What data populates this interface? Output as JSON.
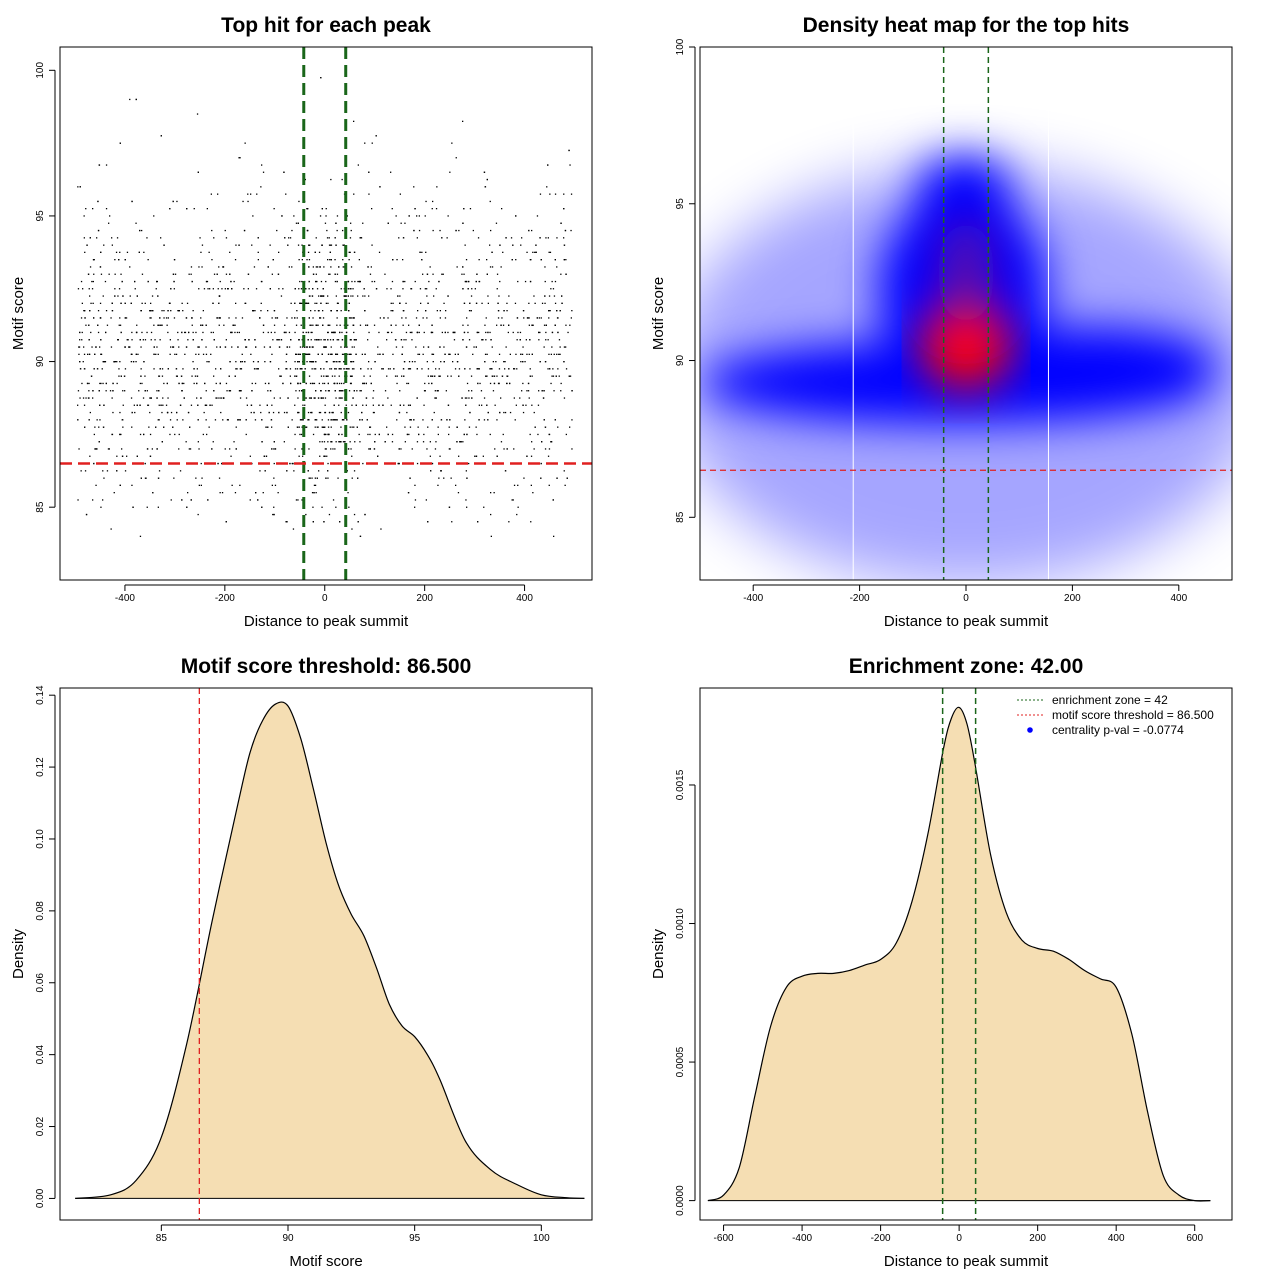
{
  "chart_data": [
    {
      "type": "scatter",
      "title": "Top hit for each peak",
      "xlabel": "Distance to peak summit",
      "ylabel": "Motif score",
      "xlim": [
        -530,
        535
      ],
      "ylim": [
        82.5,
        100.8
      ],
      "x_ticks": [
        -400,
        -200,
        0,
        200,
        400
      ],
      "x_tick_labels": [
        "-400",
        "-200",
        "0",
        "200",
        "400"
      ],
      "y_ticks": [
        85,
        90,
        95,
        100
      ],
      "y_tick_labels": [
        "85",
        "90",
        "95",
        "100"
      ],
      "points_summary": {
        "count": 3000,
        "x_range": [
          -495,
          495
        ],
        "central_x_range": [
          -60,
          60
        ],
        "y_mode": 90,
        "y_range": [
          83.8,
          99.9
        ]
      },
      "vlines": [
        -42,
        42
      ],
      "hline": 86.5,
      "line_colors": {
        "vlines": "#1a661a",
        "hline": "#e02020"
      }
    },
    {
      "type": "heatmap",
      "title": "Density heat map for the top hits",
      "xlabel": "Distance to peak summit",
      "ylabel": "Motif score",
      "xlim": [
        -500,
        500
      ],
      "ylim": [
        83,
        100
      ],
      "x_ticks": [
        -400,
        -200,
        0,
        200,
        400
      ],
      "x_tick_labels": [
        "-400",
        "-200",
        "0",
        "200",
        "400"
      ],
      "y_ticks": [
        85,
        90,
        95,
        100
      ],
      "y_tick_labels": [
        "85",
        "90",
        "95",
        "100"
      ],
      "density_peak": {
        "x": 0,
        "y": 90.5
      },
      "white_vlines": [
        -212,
        155
      ],
      "vlines": [
        -42,
        42
      ],
      "hline": 86.5,
      "colors": {
        "low": "#ffffff",
        "mid": "#0000ff",
        "high": "#ff0000"
      }
    },
    {
      "type": "area",
      "title": "Motif score threshold: 86.500",
      "xlabel": "Motif score",
      "ylabel": "Density",
      "xlim": [
        81,
        102
      ],
      "ylim": [
        -0.006,
        0.142
      ],
      "x_ticks": [
        85,
        90,
        95,
        100
      ],
      "x_tick_labels": [
        "85",
        "90",
        "95",
        "100"
      ],
      "y_ticks": [
        0,
        0.02,
        0.04,
        0.06,
        0.08,
        0.1,
        0.12,
        0.14
      ],
      "y_tick_labels": [
        "0.00",
        "0.02",
        "0.04",
        "0.06",
        "0.08",
        "0.10",
        "0.12",
        "0.14"
      ],
      "x": [
        81.6,
        83,
        84,
        85,
        86,
        87,
        88,
        88.5,
        89,
        89.5,
        90,
        90.5,
        91,
        91.5,
        92,
        92.5,
        93,
        93.5,
        94,
        94.5,
        95,
        95.5,
        96,
        97,
        98,
        99,
        100,
        101,
        101.7
      ],
      "y": [
        0.0,
        0.001,
        0.005,
        0.017,
        0.043,
        0.077,
        0.109,
        0.124,
        0.133,
        0.1375,
        0.137,
        0.128,
        0.114,
        0.099,
        0.087,
        0.079,
        0.073,
        0.064,
        0.054,
        0.048,
        0.045,
        0.04,
        0.033,
        0.016,
        0.008,
        0.004,
        0.001,
        0.0002,
        0.0
      ],
      "vline": 86.5,
      "fill_color": "#f5deb3",
      "line_colors": {
        "vline": "#e02020"
      }
    },
    {
      "type": "area",
      "title": "Enrichment zone: 42.00",
      "xlabel": "Distance to peak summit",
      "ylabel": "Density",
      "xlim": [
        -660,
        695
      ],
      "ylim": [
        -7e-05,
        0.00185
      ],
      "x_ticks": [
        -600,
        -400,
        -200,
        0,
        200,
        400,
        600
      ],
      "x_tick_labels": [
        "-600",
        "-400",
        "-200",
        "0",
        "200",
        "400",
        "600"
      ],
      "y_ticks": [
        0,
        0.0005,
        0.001,
        0.0015
      ],
      "y_tick_labels": [
        "0.0000",
        "0.0005",
        "0.0010",
        "0.0015"
      ],
      "x": [
        -640,
        -600,
        -560,
        -520,
        -480,
        -440,
        -400,
        -360,
        -320,
        -280,
        -240,
        -200,
        -160,
        -120,
        -80,
        -40,
        -20,
        0,
        20,
        40,
        80,
        120,
        160,
        200,
        240,
        280,
        320,
        360,
        400,
        440,
        480,
        520,
        560,
        600,
        640
      ],
      "y": [
        0.0,
        2e-05,
        0.00012,
        0.00038,
        0.00063,
        0.00077,
        0.00081,
        0.00082,
        0.00082,
        0.00083,
        0.00085,
        0.00087,
        0.00093,
        0.00108,
        0.00132,
        0.00163,
        0.00174,
        0.00178,
        0.00172,
        0.00158,
        0.00125,
        0.00104,
        0.00094,
        0.00091,
        0.0009,
        0.00087,
        0.00083,
        0.0008,
        0.00077,
        0.0006,
        0.00032,
        9e-05,
        2e-05,
        0.0,
        0.0
      ],
      "vlines": [
        -42,
        42
      ],
      "fill_color": "#f5deb3",
      "line_colors": {
        "vlines": "#1a661a"
      },
      "legend": {
        "position": "top-right",
        "entries": [
          {
            "label": "enrichment zone = 42",
            "color": "#1a661a",
            "symbol": "dotted-line"
          },
          {
            "label": "motif score threshold = 86.500",
            "color": "#e02020",
            "symbol": "dotted-line"
          },
          {
            "label": "centrality p-val = -0.0774",
            "color": "#0000ff",
            "symbol": "dot"
          }
        ]
      }
    }
  ]
}
